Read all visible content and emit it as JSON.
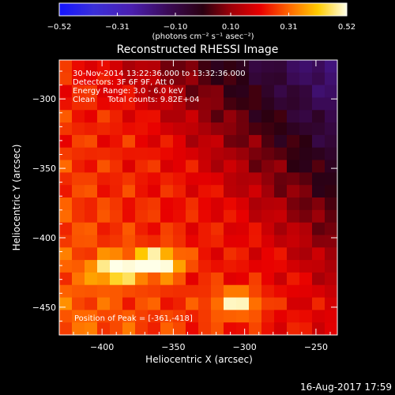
{
  "chart_data": {
    "type": "heatmap",
    "title": "Reconstructed RHESSI Image",
    "xlabel": "Heliocentric X (arcsec)",
    "ylabel": "Heliocentric Y (arcsec)",
    "xlim": [
      -430,
      -235
    ],
    "ylim": [
      -470,
      -272
    ],
    "x_ticks": [
      -400,
      -350,
      -300,
      -250
    ],
    "x_tick_labels": [
      "−400",
      "−350",
      "−300",
      "−250"
    ],
    "y_ticks": [
      -450,
      -400,
      -350,
      -300
    ],
    "y_tick_labels": [
      "−450",
      "−400",
      "−350",
      "−300"
    ],
    "colorbar": {
      "min": -0.52,
      "max": 0.52,
      "ticks": [
        -0.52,
        -0.31,
        -0.1,
        0.1,
        0.31,
        0.52
      ],
      "tick_labels": [
        "−0.52",
        "−0.31",
        "−0.10",
        "0.10",
        "0.31",
        "0.52"
      ],
      "units": "(photons cm⁻² s⁻¹ asec⁻²)",
      "colormap": "rhessi-rainbow"
    },
    "annotations": [
      "30-Nov-2014 13:22:36.000 to 13:32:36.000",
      "Detectors: 3F 6F 9F, Att 0",
      "Energy Range: 3.0 - 6.0 keV",
      "Clean     Total counts: 9.82E+04"
    ],
    "peak_label": "Position of Peak = [-361,-418]",
    "peak": {
      "x": -361,
      "y": -418
    },
    "sources": [
      {
        "x": -390,
        "y": -423,
        "value": 0.46
      },
      {
        "x": -361,
        "y": -418,
        "value": 0.52
      },
      {
        "x": -305,
        "y": -447,
        "value": 0.44
      }
    ],
    "grid": false,
    "legend": "none"
  },
  "footer": {
    "date": "16-Aug-2017 17:59"
  }
}
